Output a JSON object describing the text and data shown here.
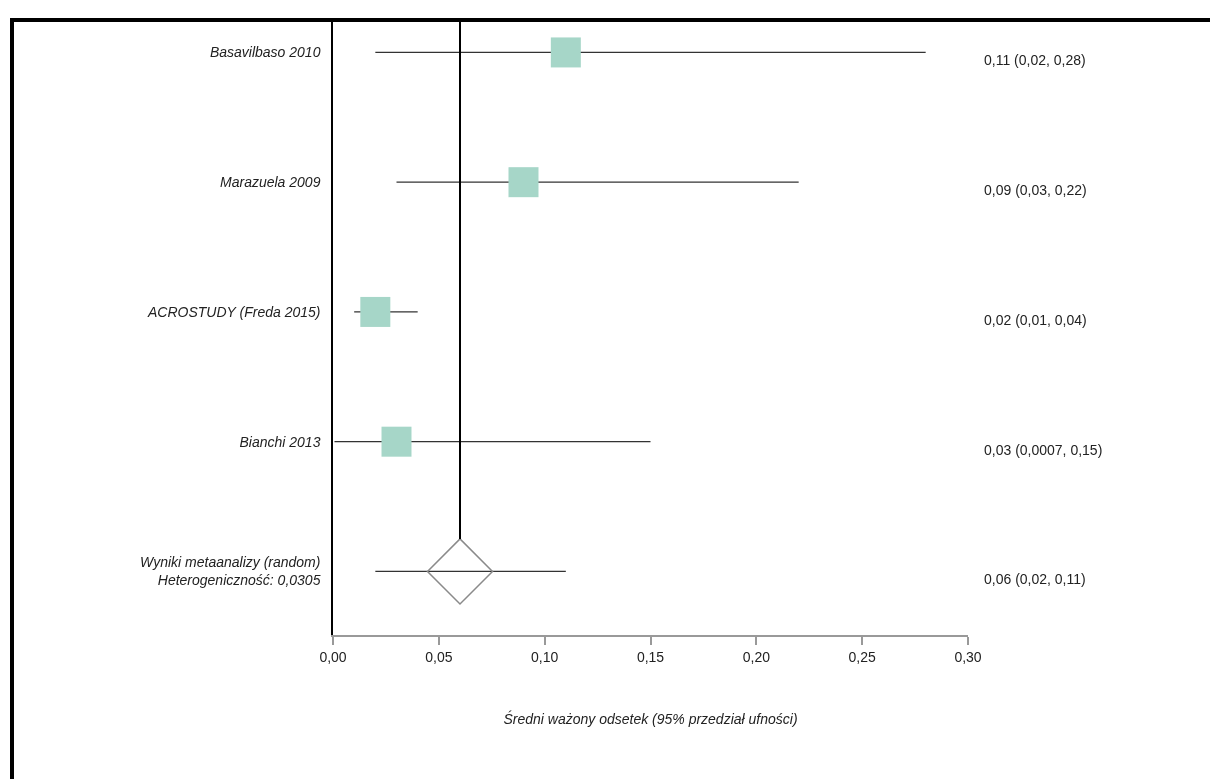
{
  "chart_data": {
    "type": "scatter",
    "orientation": "horizontal",
    "xlabel": "Średni ważony odsetek (95% przedział ufności)",
    "categories": [
      "Basavilbaso 2010",
      "Marazuela 2009",
      "ACROSTUDY (Freda 2015)",
      "Bianchi 2013",
      "Wyniki metaanalizy (random)\nHeterogeniczność: 0,0305"
    ],
    "series": [
      {
        "color": "#a6d6c8",
        "marker": "square",
        "values": [
          0.11,
          0.09,
          0.02,
          0.03,
          null
        ],
        "errors": [
          [
            0.02,
            0.28
          ],
          [
            0.03,
            0.22
          ],
          [
            0.01,
            0.04
          ],
          [
            0.0007,
            0.15
          ],
          null
        ]
      },
      {
        "color": "#8a8a8a",
        "marker": "diamond",
        "values": [
          null,
          null,
          null,
          null,
          0.06
        ],
        "errors": [
          null,
          null,
          null,
          null,
          [
            0.02,
            0.11
          ]
        ]
      }
    ],
    "annotations": [
      "0,11 (0,02, 0,28)",
      "0,09 (0,03, 0,22)",
      "0,02 (0,01, 0,04)",
      "0,03 (0,0007, 0,15)",
      "0,06 (0,02, 0,11)"
    ],
    "xlim": [
      0,
      0.3
    ],
    "xticks": [
      {
        "value": 0,
        "label": "0,00"
      },
      {
        "value": 0.05,
        "label": "0,05"
      },
      {
        "value": 0.1,
        "label": "0,10"
      },
      {
        "value": 0.15,
        "label": "0,15"
      },
      {
        "value": 0.2,
        "label": "0,20"
      },
      {
        "value": 0.25,
        "label": "0,25"
      },
      {
        "value": 0.3,
        "label": "0,30"
      }
    ],
    "ref_lines": [
      {
        "axis": "x",
        "value": 0.06,
        "color": "#000000"
      }
    ],
    "grid": false
  }
}
